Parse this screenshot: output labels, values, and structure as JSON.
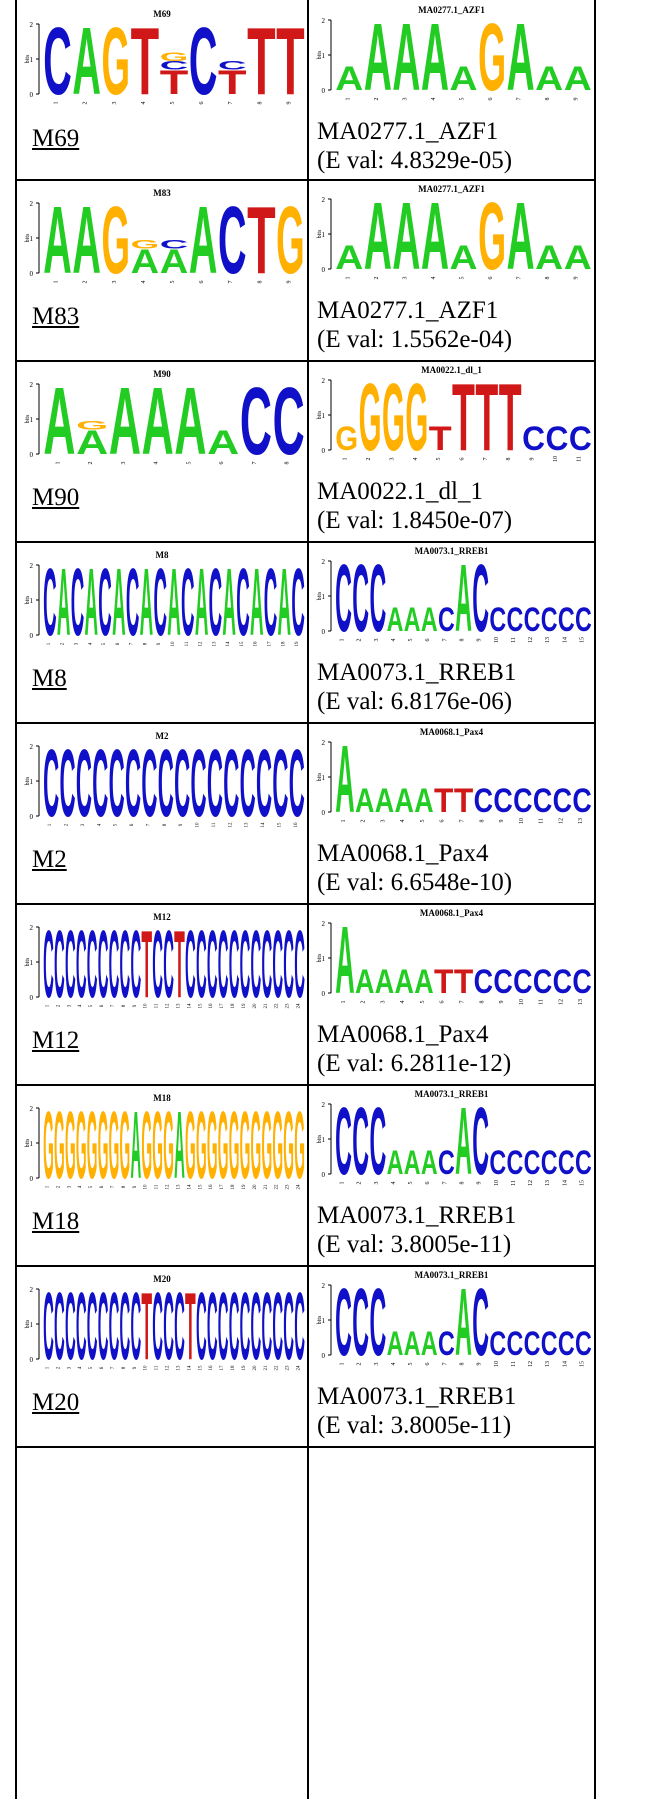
{
  "colors": {
    "A": "#22cc22",
    "C": "#1010c8",
    "G": "#ffb000",
    "T": "#d01818",
    "border": "#000000"
  },
  "axis": {
    "ylabel": "bits",
    "ticks": [
      "0",
      "1",
      "2"
    ]
  },
  "rows": [
    {
      "motif": {
        "title": "M69",
        "link": "M69",
        "letters": [
          "C",
          "A",
          "G",
          "T",
          "T",
          "C",
          "T",
          "T",
          "T"
        ],
        "tall": [
          1,
          1,
          1,
          1,
          0,
          1,
          0,
          1,
          1
        ],
        "sub": [
          [],
          [],
          [],
          [],
          [
            "C",
            "G"
          ],
          [],
          [
            "C"
          ],
          [],
          []
        ]
      },
      "match": {
        "title": "MA0277.1_AZF1",
        "name": "MA0277.1_AZF1",
        "eval": "(E val: 4.8329e-05)",
        "letters": [
          "A",
          "A",
          "A",
          "A",
          "A",
          "G",
          "A",
          "A",
          "A"
        ],
        "tall": [
          0,
          1,
          1,
          1,
          0,
          1,
          1,
          0,
          0
        ]
      }
    },
    {
      "motif": {
        "title": "M83",
        "link": "M83",
        "letters": [
          "A",
          "A",
          "G",
          "A",
          "A",
          "A",
          "C",
          "T",
          "G"
        ],
        "tall": [
          1,
          1,
          1,
          0,
          0,
          1,
          1,
          1,
          1
        ],
        "sub": [
          [],
          [],
          [],
          [
            "G"
          ],
          [
            "C"
          ],
          [],
          [],
          [],
          []
        ]
      },
      "match": {
        "title": "MA0277.1_AZF1",
        "name": "MA0277.1_AZF1",
        "eval": "(E val: 1.5562e-04)",
        "letters": [
          "A",
          "A",
          "A",
          "A",
          "A",
          "G",
          "A",
          "A",
          "A"
        ],
        "tall": [
          0,
          1,
          1,
          1,
          0,
          1,
          1,
          0,
          0
        ]
      }
    },
    {
      "motif": {
        "title": "M90",
        "link": "M90",
        "letters": [
          "A",
          "A",
          "A",
          "A",
          "A",
          "A",
          "C",
          "C"
        ],
        "tall": [
          1,
          0,
          1,
          1,
          1,
          0,
          1,
          1
        ],
        "sub": [
          [],
          [
            "G"
          ],
          [],
          [],
          [],
          [],
          [],
          []
        ]
      },
      "match": {
        "title": "MA0022.1_dl_1",
        "name": "MA0022.1_dl_1",
        "eval": "(E val: 1.8450e-07)",
        "letters": [
          "G",
          "G",
          "G",
          "G",
          "T",
          "T",
          "T",
          "T",
          "C",
          "C",
          "C"
        ],
        "tall": [
          0,
          1,
          1,
          1,
          0,
          1,
          1,
          1,
          0,
          0,
          0
        ]
      }
    },
    {
      "motif": {
        "title": "M8",
        "link": "M8",
        "letters": [
          "C",
          "A",
          "C",
          "A",
          "C",
          "A",
          "C",
          "A",
          "C",
          "A",
          "C",
          "A",
          "C",
          "A",
          "C",
          "A",
          "C",
          "A",
          "C"
        ],
        "tall": [
          1,
          1,
          1,
          1,
          1,
          1,
          1,
          1,
          1,
          1,
          1,
          1,
          1,
          1,
          1,
          1,
          1,
          1,
          1
        ],
        "sub": []
      },
      "match": {
        "title": "MA0073.1_RREB1",
        "name": "MA0073.1_RREB1",
        "eval": "(E val: 6.8176e-06)",
        "letters": [
          "C",
          "C",
          "C",
          "A",
          "A",
          "A",
          "C",
          "A",
          "C",
          "C",
          "C",
          "C",
          "C",
          "C",
          "C"
        ],
        "tall": [
          1,
          1,
          1,
          0,
          0,
          0,
          0,
          1,
          1,
          0,
          0,
          0,
          0,
          0,
          0
        ]
      }
    },
    {
      "motif": {
        "title": "M2",
        "link": "M2",
        "letters": [
          "C",
          "C",
          "C",
          "C",
          "C",
          "C",
          "C",
          "C",
          "C",
          "C",
          "C",
          "C",
          "C",
          "C",
          "C",
          "C"
        ],
        "tall": [
          1,
          1,
          1,
          1,
          1,
          1,
          1,
          1,
          1,
          1,
          1,
          1,
          1,
          1,
          1,
          1
        ],
        "sub": []
      },
      "match": {
        "title": "MA0068.1_Pax4",
        "name": "MA0068.1_Pax4",
        "eval": "(E val: 6.6548e-10)",
        "letters": [
          "A",
          "A",
          "A",
          "A",
          "A",
          "T",
          "T",
          "C",
          "C",
          "C",
          "C",
          "C",
          "C"
        ],
        "tall": [
          1,
          0,
          0,
          0,
          0,
          0,
          0,
          0,
          0,
          0,
          0,
          0,
          0
        ]
      }
    },
    {
      "motif": {
        "title": "M12",
        "link": "M12",
        "letters": [
          "C",
          "C",
          "C",
          "C",
          "C",
          "C",
          "C",
          "C",
          "C",
          "T",
          "C",
          "C",
          "T",
          "C",
          "C",
          "C",
          "C",
          "C",
          "C",
          "C",
          "C",
          "C",
          "C",
          "C"
        ],
        "tall": [
          1,
          1,
          1,
          1,
          1,
          1,
          1,
          1,
          1,
          1,
          1,
          1,
          1,
          1,
          1,
          1,
          1,
          1,
          1,
          1,
          1,
          1,
          1,
          1
        ],
        "sub": []
      },
      "match": {
        "title": "MA0068.1_Pax4",
        "name": "MA0068.1_Pax4",
        "eval": "(E val: 6.2811e-12)",
        "letters": [
          "A",
          "A",
          "A",
          "A",
          "A",
          "T",
          "T",
          "C",
          "C",
          "C",
          "C",
          "C",
          "C"
        ],
        "tall": [
          1,
          0,
          0,
          0,
          0,
          0,
          0,
          0,
          0,
          0,
          0,
          0,
          0
        ]
      }
    },
    {
      "motif": {
        "title": "M18",
        "link": "M18",
        "letters": [
          "G",
          "G",
          "G",
          "G",
          "G",
          "G",
          "G",
          "G",
          "A",
          "G",
          "G",
          "G",
          "A",
          "G",
          "G",
          "G",
          "G",
          "G",
          "G",
          "G",
          "G",
          "G",
          "G",
          "G"
        ],
        "tall": [
          1,
          1,
          1,
          1,
          1,
          1,
          1,
          1,
          1,
          1,
          1,
          1,
          1,
          1,
          1,
          1,
          1,
          1,
          1,
          1,
          1,
          1,
          1,
          1
        ],
        "sub": []
      },
      "match": {
        "title": "MA0073.1_RREB1",
        "name": "MA0073.1_RREB1",
        "eval": "(E val: 3.8005e-11)",
        "letters": [
          "C",
          "C",
          "C",
          "A",
          "A",
          "A",
          "C",
          "A",
          "C",
          "C",
          "C",
          "C",
          "C",
          "C",
          "C"
        ],
        "tall": [
          1,
          1,
          1,
          0,
          0,
          0,
          0,
          1,
          1,
          0,
          0,
          0,
          0,
          0,
          0
        ]
      }
    },
    {
      "motif": {
        "title": "M20",
        "link": "M20",
        "letters": [
          "C",
          "C",
          "C",
          "C",
          "C",
          "C",
          "C",
          "C",
          "C",
          "T",
          "C",
          "C",
          "C",
          "T",
          "C",
          "C",
          "C",
          "C",
          "C",
          "C",
          "C",
          "C",
          "C",
          "C"
        ],
        "tall": [
          1,
          1,
          1,
          1,
          1,
          1,
          1,
          1,
          1,
          1,
          1,
          1,
          1,
          1,
          1,
          1,
          1,
          1,
          1,
          1,
          1,
          1,
          1,
          1
        ],
        "sub": []
      },
      "match": {
        "title": "MA0073.1_RREB1",
        "name": "MA0073.1_RREB1",
        "eval": "(E val: 3.8005e-11)",
        "letters": [
          "C",
          "C",
          "C",
          "A",
          "A",
          "A",
          "C",
          "A",
          "C",
          "C",
          "C",
          "C",
          "C",
          "C",
          "C"
        ],
        "tall": [
          1,
          1,
          1,
          0,
          0,
          0,
          0,
          1,
          1,
          0,
          0,
          0,
          0,
          0,
          0
        ]
      }
    }
  ]
}
